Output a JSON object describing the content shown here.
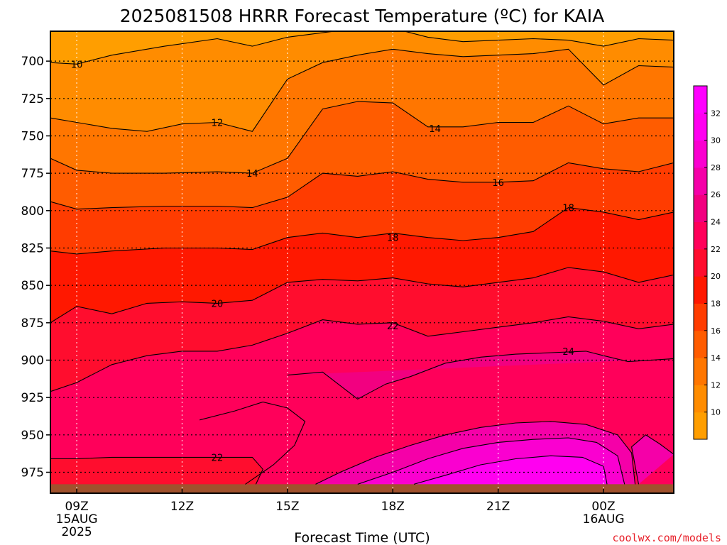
{
  "chart_data": {
    "type": "heatmap",
    "title": "2025081508 HRRR Forecast Temperature (ºC) for KAIA",
    "xlabel": "Forecast Time (UTC)",
    "ylabel": "",
    "x_ticks": [
      {
        "hour": 9,
        "lines": [
          "09Z",
          "15AUG",
          "2025"
        ]
      },
      {
        "hour": 12,
        "lines": [
          "12Z"
        ]
      },
      {
        "hour": 15,
        "lines": [
          "15Z"
        ]
      },
      {
        "hour": 18,
        "lines": [
          "18Z"
        ]
      },
      {
        "hour": 21,
        "lines": [
          "21Z"
        ]
      },
      {
        "hour": 24,
        "lines": [
          "00Z",
          "16AUG"
        ]
      }
    ],
    "xlim": [
      8.25,
      26.0
    ],
    "y_ticks": [
      700,
      725,
      750,
      775,
      800,
      825,
      850,
      875,
      900,
      925,
      950,
      975
    ],
    "ylim_hPa": [
      680,
      989
    ],
    "surface_pressure_hPa": 983,
    "grid": true,
    "colorbar": {
      "ticks": [
        10,
        12,
        14,
        16,
        18,
        20,
        22,
        24,
        26,
        28,
        30,
        32
      ],
      "bands": [
        {
          "min": 8,
          "max": 10,
          "color": "#ff9e00"
        },
        {
          "min": 10,
          "max": 12,
          "color": "#ff8c00"
        },
        {
          "min": 12,
          "max": 14,
          "color": "#ff7600"
        },
        {
          "min": 14,
          "max": 16,
          "color": "#ff5c00"
        },
        {
          "min": 16,
          "max": 18,
          "color": "#ff3c00"
        },
        {
          "min": 18,
          "max": 20,
          "color": "#ff1800"
        },
        {
          "min": 20,
          "max": 22,
          "color": "#ff0d2e"
        },
        {
          "min": 22,
          "max": 24,
          "color": "#ff005a"
        },
        {
          "min": 24,
          "max": 26,
          "color": "#f20080"
        },
        {
          "min": 26,
          "max": 28,
          "color": "#f500a8"
        },
        {
          "min": 28,
          "max": 30,
          "color": "#fa00d0"
        },
        {
          "min": 30,
          "max": 32,
          "color": "#ff00f0"
        },
        {
          "min": 32,
          "max": 34,
          "color": "#ff00ff"
        }
      ]
    },
    "isotherms": [
      {
        "temp": 10,
        "points": [
          [
            8.25,
            701
          ],
          [
            9,
            702
          ],
          [
            10,
            696
          ],
          [
            11.5,
            690
          ],
          [
            13,
            685
          ],
          [
            14,
            690
          ],
          [
            15,
            684
          ],
          [
            16,
            681
          ],
          [
            17,
            678
          ],
          [
            18,
            678
          ],
          [
            19,
            684
          ],
          [
            20,
            687
          ],
          [
            21,
            686
          ],
          [
            22,
            685
          ],
          [
            23,
            686
          ],
          [
            24,
            690
          ],
          [
            25,
            685
          ],
          [
            26,
            686
          ]
        ]
      },
      {
        "temp": 12,
        "points": [
          [
            8.25,
            738
          ],
          [
            9,
            741
          ],
          [
            10,
            745
          ],
          [
            11,
            747
          ],
          [
            12,
            742
          ],
          [
            13,
            741
          ],
          [
            14,
            747
          ],
          [
            15,
            712
          ],
          [
            16,
            701
          ],
          [
            17,
            696
          ],
          [
            18,
            692
          ],
          [
            19,
            695
          ],
          [
            20,
            697
          ],
          [
            21,
            696
          ],
          [
            22,
            695
          ],
          [
            23,
            692
          ],
          [
            24,
            716
          ],
          [
            25,
            703
          ],
          [
            26,
            704
          ]
        ]
      },
      {
        "temp": 14,
        "points": [
          [
            8.25,
            765
          ],
          [
            9,
            773
          ],
          [
            10,
            775
          ],
          [
            11.5,
            775
          ],
          [
            13,
            774
          ],
          [
            14,
            775
          ],
          [
            15,
            765
          ],
          [
            16,
            732
          ],
          [
            17,
            727
          ],
          [
            18,
            728
          ],
          [
            19,
            744
          ],
          [
            20,
            744
          ],
          [
            21,
            741
          ],
          [
            22,
            741
          ],
          [
            23,
            730
          ],
          [
            24,
            742
          ],
          [
            25,
            738
          ],
          [
            26,
            738
          ]
        ]
      },
      {
        "temp": 16,
        "points": [
          [
            8.25,
            794
          ],
          [
            9,
            799
          ],
          [
            10,
            798
          ],
          [
            11.5,
            797
          ],
          [
            13,
            797
          ],
          [
            14,
            798
          ],
          [
            15,
            791
          ],
          [
            16,
            775
          ],
          [
            17,
            777
          ],
          [
            18,
            774
          ],
          [
            19,
            779
          ],
          [
            20,
            781
          ],
          [
            21,
            781
          ],
          [
            22,
            780
          ],
          [
            23,
            768
          ],
          [
            24,
            772
          ],
          [
            25,
            774
          ],
          [
            26,
            768
          ]
        ]
      },
      {
        "temp": 18,
        "points": [
          [
            8.25,
            827
          ],
          [
            9,
            829
          ],
          [
            10,
            827
          ],
          [
            11.5,
            825
          ],
          [
            13,
            825
          ],
          [
            14,
            826
          ],
          [
            15,
            818
          ],
          [
            16,
            815
          ],
          [
            17,
            818
          ],
          [
            18,
            815
          ],
          [
            19,
            818
          ],
          [
            20,
            820
          ],
          [
            21,
            818
          ],
          [
            22,
            814
          ],
          [
            23,
            798
          ],
          [
            24,
            801
          ],
          [
            25,
            806
          ],
          [
            26,
            801
          ]
        ]
      },
      {
        "temp": 20,
        "points": [
          [
            8.25,
            875
          ],
          [
            9,
            864
          ],
          [
            10,
            869
          ],
          [
            11,
            862
          ],
          [
            12,
            861
          ],
          [
            13,
            862
          ],
          [
            14,
            860
          ],
          [
            15,
            848
          ],
          [
            16,
            846
          ],
          [
            17,
            847
          ],
          [
            18,
            845
          ],
          [
            19,
            849
          ],
          [
            20,
            851
          ],
          [
            21,
            848
          ],
          [
            22,
            845
          ],
          [
            23,
            838
          ],
          [
            24,
            841
          ],
          [
            25,
            848
          ],
          [
            26,
            843
          ]
        ]
      },
      {
        "temp": 22,
        "points": [
          [
            8.25,
            921
          ],
          [
            9,
            915
          ],
          [
            10,
            903
          ],
          [
            11,
            897
          ],
          [
            12,
            894
          ],
          [
            13,
            894
          ],
          [
            14,
            890
          ],
          [
            15,
            882
          ],
          [
            16,
            873
          ],
          [
            17,
            876
          ],
          [
            18,
            875
          ],
          [
            19,
            884
          ],
          [
            20,
            881
          ],
          [
            21,
            878
          ],
          [
            22,
            875
          ],
          [
            23,
            871
          ],
          [
            24,
            874
          ],
          [
            25,
            879
          ],
          [
            26,
            876
          ]
        ]
      },
      {
        "temp": 24,
        "points": [
          [
            15,
            910
          ],
          [
            16,
            908
          ],
          [
            16.5,
            917
          ],
          [
            17,
            926
          ],
          [
            17.8,
            916
          ],
          [
            18.5,
            911
          ],
          [
            19.5,
            902
          ],
          [
            20.5,
            898
          ],
          [
            21.5,
            896
          ],
          [
            22.5,
            895
          ],
          [
            23.5,
            894
          ],
          [
            24,
            897
          ],
          [
            24.7,
            901
          ],
          [
            26,
            899
          ]
        ]
      },
      {
        "temp": 24,
        "points": [
          [
            12.5,
            940
          ],
          [
            13.5,
            934
          ],
          [
            14.3,
            928
          ],
          [
            15,
            932
          ],
          [
            15.5,
            941
          ],
          [
            15.2,
            957
          ],
          [
            14.6,
            970
          ],
          [
            13.8,
            983
          ]
        ]
      },
      {
        "temp": 22,
        "points": [
          [
            8.25,
            966
          ],
          [
            9,
            966
          ],
          [
            10,
            965
          ],
          [
            11.5,
            965
          ],
          [
            13,
            965
          ],
          [
            14,
            965
          ],
          [
            14.3,
            973
          ],
          [
            14.1,
            983
          ]
        ]
      },
      {
        "temp": 26,
        "points": [
          [
            15.8,
            983
          ],
          [
            16.5,
            975
          ],
          [
            17.5,
            965
          ],
          [
            18.5,
            957
          ],
          [
            19.5,
            950
          ],
          [
            20.5,
            945
          ],
          [
            21.5,
            942
          ],
          [
            22.5,
            941
          ],
          [
            23.5,
            943
          ],
          [
            24.4,
            950
          ],
          [
            24.8,
            962
          ],
          [
            24.9,
            983
          ]
        ]
      },
      {
        "temp": 28,
        "points": [
          [
            17,
            983
          ],
          [
            18,
            975
          ],
          [
            19,
            966
          ],
          [
            20,
            959
          ],
          [
            21,
            955
          ],
          [
            22,
            953
          ],
          [
            23,
            952
          ],
          [
            23.8,
            955
          ],
          [
            24.4,
            964
          ],
          [
            24.6,
            983
          ]
        ]
      },
      {
        "temp": 30,
        "points": [
          [
            18.6,
            983
          ],
          [
            19.5,
            977
          ],
          [
            20.5,
            970
          ],
          [
            21.5,
            966
          ],
          [
            22.5,
            964
          ],
          [
            23.4,
            965
          ],
          [
            24,
            971
          ],
          [
            24.1,
            983
          ]
        ]
      },
      {
        "temp": 26,
        "points": [
          [
            25,
            983
          ],
          [
            24.8,
            958
          ],
          [
            25.2,
            950
          ],
          [
            25.6,
            956
          ],
          [
            26,
            963
          ]
        ]
      }
    ],
    "contour_labels": [
      {
        "text": "10",
        "x": 9.0,
        "p": 702
      },
      {
        "text": "12",
        "x": 13.0,
        "p": 741
      },
      {
        "text": "14",
        "x": 14.0,
        "p": 775
      },
      {
        "text": "14",
        "x": 19.2,
        "p": 745
      },
      {
        "text": "16",
        "x": 21.0,
        "p": 781
      },
      {
        "text": "18",
        "x": 18.0,
        "p": 818
      },
      {
        "text": "18",
        "x": 23.0,
        "p": 798
      },
      {
        "text": "20",
        "x": 13.0,
        "p": 862
      },
      {
        "text": "22",
        "x": 18.0,
        "p": 877
      },
      {
        "text": "22",
        "x": 13.0,
        "p": 965
      },
      {
        "text": "24",
        "x": 23.0,
        "p": 894
      }
    ]
  },
  "credit": "coolwx.com/models",
  "credit_color": "#e8202a"
}
